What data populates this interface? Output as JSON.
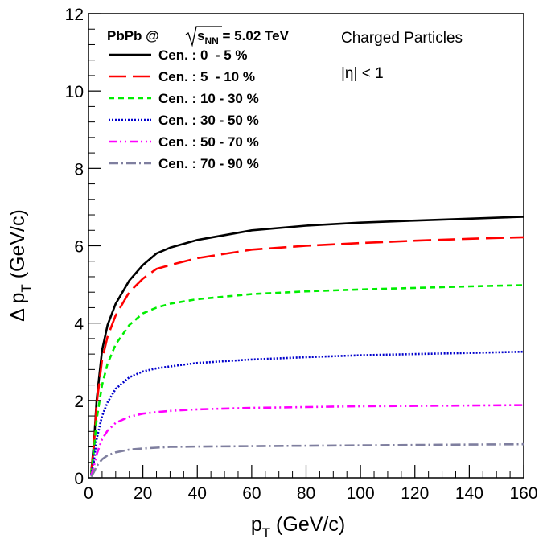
{
  "chart_data": {
    "type": "line",
    "xlabel": {
      "main": "p",
      "sub": "T",
      "unit": " (GeV/c)"
    },
    "ylabel": {
      "main": "Δ p",
      "sub": "T",
      "unit": " (GeV/c)"
    },
    "xlim": [
      0,
      160
    ],
    "ylim": [
      0,
      12
    ],
    "x_ticks": [
      0,
      20,
      40,
      60,
      80,
      100,
      120,
      140,
      160
    ],
    "y_ticks": [
      0,
      2,
      4,
      6,
      8,
      10,
      12
    ],
    "grid": false,
    "legend_header": {
      "system": "PbPb @ ",
      "radical": "s",
      "radical_sub": "NN",
      "energy": " = 5.02 TeV"
    },
    "annotations": {
      "particles": "Charged Particles",
      "eta": "|η| < 1"
    },
    "legend_placement": "top-left",
    "series": [
      {
        "name": "Cen. : 0  - 5 %",
        "color": "#000000",
        "dash": "solid",
        "x": [
          1,
          2,
          3,
          5,
          7,
          10,
          15,
          20,
          25,
          30,
          40,
          60,
          80,
          100,
          120,
          140,
          160
        ],
        "y": [
          0.15,
          0.9,
          2.0,
          3.3,
          3.95,
          4.5,
          5.1,
          5.5,
          5.8,
          5.95,
          6.15,
          6.4,
          6.52,
          6.6,
          6.65,
          6.7,
          6.75
        ]
      },
      {
        "name": "Cen. : 5  - 10 %",
        "color": "#ff0000",
        "dash": "long-dash",
        "x": [
          1,
          2,
          3,
          5,
          7,
          10,
          15,
          20,
          25,
          30,
          40,
          60,
          80,
          100,
          120,
          140,
          160
        ],
        "y": [
          0.12,
          0.85,
          1.9,
          3.05,
          3.65,
          4.2,
          4.8,
          5.15,
          5.4,
          5.5,
          5.68,
          5.9,
          6.0,
          6.07,
          6.13,
          6.18,
          6.22
        ]
      },
      {
        "name": "Cen. : 10 - 30 %",
        "color": "#00ee00",
        "dash": "short-dash",
        "x": [
          1,
          2,
          3,
          5,
          7,
          10,
          15,
          20,
          25,
          30,
          40,
          60,
          80,
          100,
          120,
          140,
          160
        ],
        "y": [
          0.1,
          0.7,
          1.5,
          2.4,
          2.95,
          3.45,
          3.95,
          4.25,
          4.4,
          4.5,
          4.62,
          4.75,
          4.82,
          4.87,
          4.91,
          4.95,
          4.98
        ]
      },
      {
        "name": "Cen. : 30 - 50 %",
        "color": "#0000cc",
        "dash": "dotted",
        "x": [
          1,
          2,
          3,
          5,
          7,
          10,
          15,
          20,
          25,
          30,
          40,
          60,
          80,
          100,
          120,
          140,
          160
        ],
        "y": [
          0.08,
          0.45,
          1.0,
          1.6,
          1.95,
          2.3,
          2.6,
          2.75,
          2.83,
          2.88,
          2.97,
          3.06,
          3.12,
          3.17,
          3.2,
          3.23,
          3.26
        ]
      },
      {
        "name": "Cen. : 50 - 70 %",
        "color": "#ff00ff",
        "dash": "dash-dot-dot",
        "x": [
          1,
          2,
          3,
          5,
          7,
          10,
          15,
          20,
          25,
          30,
          40,
          60,
          80,
          100,
          120,
          140,
          160
        ],
        "y": [
          0.05,
          0.3,
          0.6,
          1.0,
          1.22,
          1.42,
          1.58,
          1.66,
          1.7,
          1.73,
          1.77,
          1.81,
          1.83,
          1.85,
          1.86,
          1.87,
          1.88
        ]
      },
      {
        "name": "Cen. : 70 - 90 %",
        "color": "#7f7f9f",
        "dash": "dash-dot",
        "x": [
          1,
          2,
          3,
          5,
          7,
          10,
          15,
          20,
          25,
          30,
          40,
          60,
          80,
          100,
          120,
          140,
          160
        ],
        "y": [
          0.03,
          0.15,
          0.3,
          0.48,
          0.58,
          0.66,
          0.73,
          0.76,
          0.78,
          0.8,
          0.81,
          0.82,
          0.83,
          0.84,
          0.85,
          0.86,
          0.87
        ]
      }
    ]
  }
}
